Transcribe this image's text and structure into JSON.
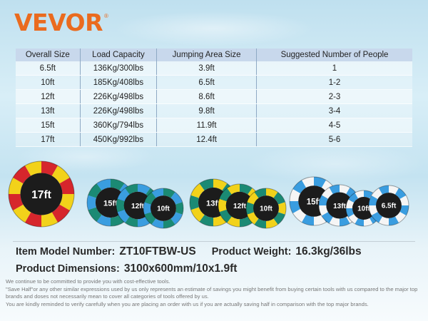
{
  "brand": {
    "name": "VEVOR",
    "mark": "®"
  },
  "table": {
    "headers": [
      "Overall Size",
      "Load Capacity",
      "Jumping Area Size",
      "Suggested Number of People"
    ],
    "rows": [
      [
        "6.5ft",
        "136Kg/300lbs",
        "3.9ft",
        "1"
      ],
      [
        "10ft",
        "185Kg/408lbs",
        "6.5ft",
        "1-2"
      ],
      [
        "12ft",
        "226Kg/498lbs",
        "8.6ft",
        "2-3"
      ],
      [
        "13ft",
        "226Kg/498lbs",
        "9.8ft",
        "3-4"
      ],
      [
        "15ft",
        "360Kg/794lbs",
        "11.9ft",
        "4-5"
      ],
      [
        "17ft",
        "450Kg/992lbs",
        "12.4ft",
        "5-6"
      ]
    ]
  },
  "products": {
    "red_yellow": [
      "17ft"
    ],
    "green_blue": [
      "15ft",
      "12ft",
      "10ft"
    ],
    "yellow_green": [
      "13ft",
      "12ft",
      "10ft"
    ],
    "blue_white": [
      "15ft",
      "13ft",
      "10ft",
      "6.5ft"
    ]
  },
  "colors": {
    "brand": "#ea6b1f",
    "red": "#d6262c",
    "yellow": "#f2d21a",
    "green": "#1b8a74",
    "blue": "#3a9de0",
    "white": "#f5f5f5"
  },
  "info": {
    "model_label": "Item Model Number:",
    "model_value": "ZT10FTBW-US",
    "weight_label": "Product Weight:",
    "weight_value": "16.3kg/36lbs",
    "dimensions_label": "Product Dimensions:",
    "dimensions_value": "3100x600mm/10x1.9ft"
  },
  "disclaimer": [
    "We continue to be committed to provide you with cost-effective tools.",
    "\"Save Half\"or any other similar expressions used by us only represents an estimate of savings you might benefit from buying certain tools with us compared to the major top brands and doses not necessarily mean to cover all categories of tools offered by us.",
    "You are kindly reminded to verify carefully when you are placing an order with us if you are actually saving half in comparison with the top major brands."
  ]
}
